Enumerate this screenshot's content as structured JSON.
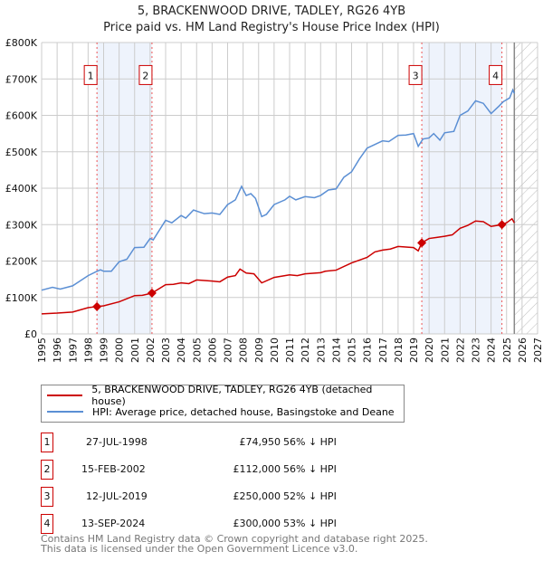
{
  "chart_data": {
    "type": "line",
    "title": "5, BRACKENWOOD DRIVE, TADLEY, RG26 4YB",
    "subtitle": "Price paid vs. HM Land Registry's House Price Index (HPI)",
    "xlim": [
      1995,
      2027
    ],
    "ylim": [
      0,
      800000
    ],
    "x_ticks": [
      "1995",
      "1996",
      "1997",
      "1998",
      "1999",
      "2000",
      "2001",
      "2002",
      "2003",
      "2004",
      "2005",
      "2006",
      "2007",
      "2008",
      "2009",
      "2010",
      "2011",
      "2012",
      "2013",
      "2014",
      "2015",
      "2016",
      "2017",
      "2018",
      "2019",
      "2020",
      "2021",
      "2022",
      "2023",
      "2024",
      "2025",
      "2026",
      "2027"
    ],
    "y_ticks": [
      {
        "v": 0,
        "label": "£0"
      },
      {
        "v": 100000,
        "label": "£100K"
      },
      {
        "v": 200000,
        "label": "£200K"
      },
      {
        "v": 300000,
        "label": "£300K"
      },
      {
        "v": 400000,
        "label": "£400K"
      },
      {
        "v": 500000,
        "label": "£500K"
      },
      {
        "v": 600000,
        "label": "£600K"
      },
      {
        "v": 700000,
        "label": "£700K"
      },
      {
        "v": 800000,
        "label": "£800K"
      }
    ],
    "grid": true,
    "forecast_start": 2025.5,
    "shaded": [
      [
        1998.57,
        2002.12
      ],
      [
        2019.53,
        2024.7
      ]
    ],
    "series": [
      {
        "name": "5, BRACKENWOOD DRIVE, TADLEY, RG26 4YB (detached house)",
        "color": "#cc0000",
        "points": [
          [
            1995,
            55000
          ],
          [
            1996,
            57000
          ],
          [
            1997,
            60000
          ],
          [
            1998,
            72000
          ],
          [
            1998.57,
            75000
          ],
          [
            1999,
            77000
          ],
          [
            2000,
            88000
          ],
          [
            2001,
            105000
          ],
          [
            2001.5,
            106000
          ],
          [
            2002.12,
            112000
          ],
          [
            2003,
            135000
          ],
          [
            2003.5,
            136000
          ],
          [
            2004,
            140000
          ],
          [
            2004.5,
            138000
          ],
          [
            2005,
            148000
          ],
          [
            2006,
            145000
          ],
          [
            2006.5,
            143000
          ],
          [
            2007,
            156000
          ],
          [
            2007.5,
            160000
          ],
          [
            2007.8,
            178000
          ],
          [
            2008.2,
            167000
          ],
          [
            2008.7,
            165000
          ],
          [
            2009.2,
            140000
          ],
          [
            2010,
            155000
          ],
          [
            2011,
            162000
          ],
          [
            2011.5,
            160000
          ],
          [
            2012,
            165000
          ],
          [
            2013,
            168000
          ],
          [
            2013.3,
            172000
          ],
          [
            2014,
            175000
          ],
          [
            2015,
            195000
          ],
          [
            2016,
            210000
          ],
          [
            2016.5,
            225000
          ],
          [
            2017,
            230000
          ],
          [
            2017.5,
            233000
          ],
          [
            2018,
            240000
          ],
          [
            2019,
            237000
          ],
          [
            2019.3,
            228000
          ],
          [
            2019.53,
            250000
          ],
          [
            2020,
            262000
          ],
          [
            2020.5,
            265000
          ],
          [
            2021,
            268000
          ],
          [
            2021.5,
            272000
          ],
          [
            2022,
            290000
          ],
          [
            2022.5,
            298000
          ],
          [
            2023,
            310000
          ],
          [
            2023.5,
            308000
          ],
          [
            2024,
            295000
          ],
          [
            2024.7,
            300000
          ],
          [
            2025,
            305000
          ],
          [
            2025.35,
            316000
          ],
          [
            2025.5,
            305000
          ]
        ]
      },
      {
        "name": "HPI: Average price, detached house, Basingstoke and Deane",
        "color": "#5b8fd4",
        "points": [
          [
            1995,
            120000
          ],
          [
            1995.7,
            128000
          ],
          [
            1996.2,
            123000
          ],
          [
            1997,
            132000
          ],
          [
            1998,
            160000
          ],
          [
            1998.57,
            172000
          ],
          [
            1998.8,
            176000
          ],
          [
            1999,
            172000
          ],
          [
            1999.5,
            172000
          ],
          [
            2000,
            198000
          ],
          [
            2000.5,
            205000
          ],
          [
            2001,
            237000
          ],
          [
            2001.6,
            238000
          ],
          [
            2002,
            262000
          ],
          [
            2002.2,
            258000
          ],
          [
            2003,
            312000
          ],
          [
            2003.4,
            305000
          ],
          [
            2004,
            325000
          ],
          [
            2004.3,
            318000
          ],
          [
            2004.8,
            340000
          ],
          [
            2005.5,
            330000
          ],
          [
            2006,
            332000
          ],
          [
            2006.5,
            328000
          ],
          [
            2007,
            355000
          ],
          [
            2007.5,
            368000
          ],
          [
            2007.9,
            405000
          ],
          [
            2008.2,
            380000
          ],
          [
            2008.5,
            385000
          ],
          [
            2008.8,
            372000
          ],
          [
            2009.2,
            322000
          ],
          [
            2009.5,
            328000
          ],
          [
            2010,
            355000
          ],
          [
            2010.7,
            368000
          ],
          [
            2011,
            378000
          ],
          [
            2011.4,
            368000
          ],
          [
            2012,
            377000
          ],
          [
            2012.6,
            374000
          ],
          [
            2013,
            380000
          ],
          [
            2013.5,
            395000
          ],
          [
            2014,
            398000
          ],
          [
            2014.5,
            430000
          ],
          [
            2015,
            445000
          ],
          [
            2015.5,
            480000
          ],
          [
            2016,
            510000
          ],
          [
            2016.5,
            520000
          ],
          [
            2017,
            530000
          ],
          [
            2017.4,
            528000
          ],
          [
            2018,
            545000
          ],
          [
            2018.5,
            546000
          ],
          [
            2019,
            550000
          ],
          [
            2019.3,
            515000
          ],
          [
            2019.6,
            535000
          ],
          [
            2020,
            538000
          ],
          [
            2020.3,
            550000
          ],
          [
            2020.7,
            532000
          ],
          [
            2021,
            552000
          ],
          [
            2021.6,
            556000
          ],
          [
            2022,
            600000
          ],
          [
            2022.5,
            612000
          ],
          [
            2023,
            640000
          ],
          [
            2023.5,
            633000
          ],
          [
            2024,
            605000
          ],
          [
            2024.5,
            625000
          ],
          [
            2024.8,
            638000
          ],
          [
            2025.2,
            648000
          ],
          [
            2025.4,
            670000
          ],
          [
            2025.5,
            660000
          ]
        ]
      }
    ],
    "sales": [
      {
        "label": "1",
        "x": 1998.57,
        "price": 74950,
        "date": "27-JUL-1998",
        "price_text": "£74,950",
        "hpi": "56% ↓ HPI"
      },
      {
        "label": "2",
        "x": 2002.12,
        "price": 112000,
        "date": "15-FEB-2002",
        "price_text": "£112,000",
        "hpi": "56% ↓ HPI"
      },
      {
        "label": "3",
        "x": 2019.53,
        "price": 250000,
        "date": "12-JUL-2019",
        "price_text": "£250,000",
        "hpi": "52% ↓ HPI"
      },
      {
        "label": "4",
        "x": 2024.7,
        "price": 300000,
        "date": "13-SEP-2024",
        "price_text": "£300,000",
        "hpi": "53% ↓ HPI"
      }
    ]
  },
  "legend": {
    "red": "5, BRACKENWOOD DRIVE, TADLEY, RG26 4YB (detached house)",
    "blue": "HPI: Average price, detached house, Basingstoke and Deane"
  },
  "footer": {
    "line1": "Contains HM Land Registry data © Crown copyright and database right 2025.",
    "line2": "This data is licensed under the Open Government Licence v3.0."
  }
}
